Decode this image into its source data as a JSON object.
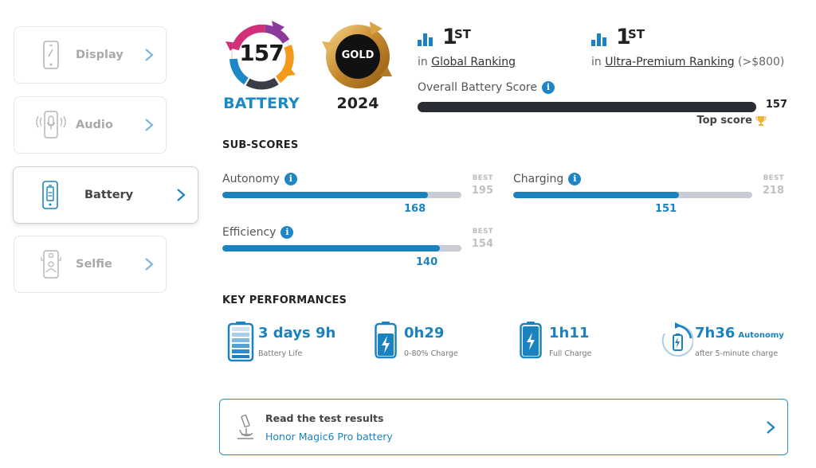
{
  "colors": {
    "accent": "#1a83bf",
    "dark_bar": "#2a2c33",
    "best_track": "#c9ccd6",
    "border": "#e6e6e6"
  },
  "sidebar": {
    "items": [
      {
        "label": "Display",
        "icon": "phone-icon",
        "active": false
      },
      {
        "label": "Audio",
        "icon": "microphone-icon",
        "active": false
      },
      {
        "label": "Battery",
        "icon": "battery-icon",
        "active": true
      },
      {
        "label": "Selfie",
        "icon": "selfie-camera-icon",
        "active": false
      }
    ]
  },
  "badges": {
    "score": "157",
    "category": "BATTERY",
    "award": "GOLD",
    "year": "2024"
  },
  "rankings": [
    {
      "rank": "1",
      "suffix": "ST",
      "prefix": "in ",
      "link": "Global Ranking",
      "extra": ""
    },
    {
      "rank": "1",
      "suffix": "ST",
      "prefix": "in ",
      "link": "Ultra-Premium Ranking",
      "extra": " (>$800)"
    }
  ],
  "overall": {
    "label": "Overall Battery Score",
    "value": "157",
    "top_score_label": "Top score",
    "fraction": 1.0
  },
  "sub_scores": {
    "title": "SUB-SCORES",
    "best_label": "BEST",
    "items": [
      {
        "label": "Autonomy",
        "value": 168,
        "best": 195
      },
      {
        "label": "Charging",
        "value": 151,
        "best": 218
      },
      {
        "label": "Efficiency",
        "value": 140,
        "best": 154
      }
    ]
  },
  "key_performances": {
    "title": "KEY PERFORMANCES",
    "items": [
      {
        "value": "3 days 9h",
        "tag": "",
        "caption": "Battery Life",
        "icon": "battery-life-icon"
      },
      {
        "value": "0h29",
        "tag": "",
        "caption": "0-80% Charge",
        "icon": "battery-charge-icon"
      },
      {
        "value": "1h11",
        "tag": "",
        "caption": "Full Charge",
        "icon": "battery-full-charge-icon"
      },
      {
        "value": "7h36",
        "tag": "Autonomy",
        "caption": "after 5-minute charge",
        "icon": "quick-charge-icon"
      }
    ]
  },
  "test_results": {
    "title": "Read the test results",
    "link": "Honor Magic6 Pro battery"
  }
}
